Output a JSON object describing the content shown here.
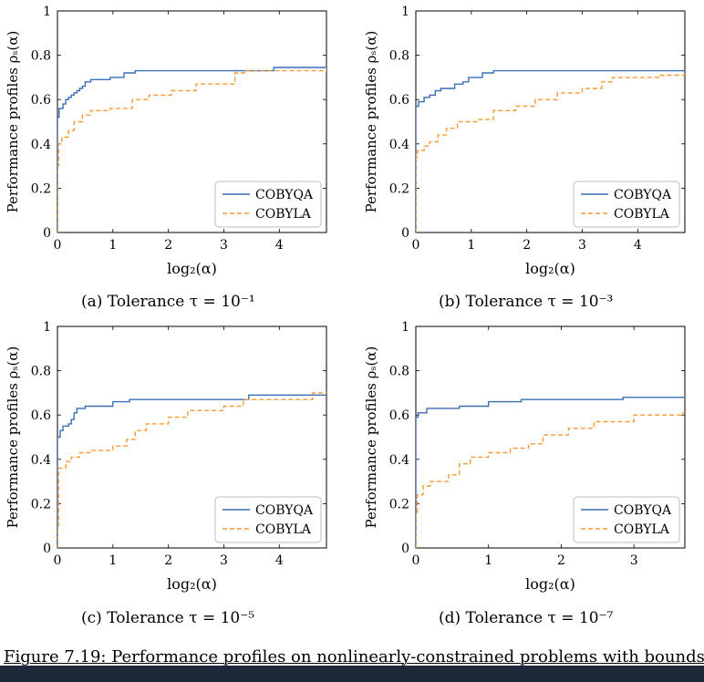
{
  "caption": "Figure 7.19: Performance profiles on nonlinearly-constrained problems with bounds",
  "colors": {
    "cobyqa": "#3a6fb5",
    "cobyla": "#f59a34",
    "bottom_bar": "#1d2838"
  },
  "chart_data": [
    {
      "type": "line",
      "step": true,
      "subcaption": "(a) Tolerance τ = 10⁻¹",
      "xlabel": "log₂(α)",
      "ylabel": "Performance profiles ρₛ(α)",
      "xlim": [
        0,
        4.85
      ],
      "ylim": [
        0,
        1
      ],
      "xticks": [
        "0",
        "1",
        "2",
        "3",
        "4"
      ],
      "yticks": [
        "0",
        "0.2",
        "0.4",
        "0.6",
        "0.8",
        "1"
      ],
      "legend_position": "lower-right",
      "series": [
        {
          "name": "COBYQA",
          "style": "solid",
          "x": [
            0,
            0.03,
            0.1,
            0.15,
            0.2,
            0.25,
            0.3,
            0.35,
            0.4,
            0.45,
            0.5,
            0.6,
            0.95,
            1.2,
            1.4,
            3.9,
            4.85
          ],
          "y": [
            0.52,
            0.56,
            0.58,
            0.6,
            0.61,
            0.62,
            0.63,
            0.64,
            0.65,
            0.66,
            0.68,
            0.69,
            0.7,
            0.72,
            0.73,
            0.745,
            0.745
          ]
        },
        {
          "name": "COBYLA",
          "style": "dashed",
          "x": [
            0,
            0.02,
            0.08,
            0.2,
            0.3,
            0.45,
            0.6,
            0.95,
            1.35,
            1.65,
            2.05,
            2.5,
            3.2,
            3.4,
            4.85
          ],
          "y": [
            0.3,
            0.4,
            0.43,
            0.46,
            0.5,
            0.53,
            0.55,
            0.56,
            0.6,
            0.62,
            0.64,
            0.67,
            0.72,
            0.73,
            0.745
          ]
        }
      ]
    },
    {
      "type": "line",
      "step": true,
      "subcaption": "(b) Tolerance τ = 10⁻³",
      "xlabel": "log₂(α)",
      "ylabel": "Performance profiles ρₛ(α)",
      "xlim": [
        0,
        4.85
      ],
      "ylim": [
        0,
        1
      ],
      "xticks": [
        "0",
        "1",
        "2",
        "3",
        "4"
      ],
      "yticks": [
        "0",
        "0.2",
        "0.4",
        "0.6",
        "0.8",
        "1"
      ],
      "legend_position": "lower-right",
      "series": [
        {
          "name": "COBYQA",
          "style": "solid",
          "x": [
            0,
            0.05,
            0.15,
            0.25,
            0.35,
            0.45,
            0.7,
            0.85,
            0.95,
            1.2,
            1.4,
            4.85
          ],
          "y": [
            0.57,
            0.59,
            0.61,
            0.62,
            0.64,
            0.65,
            0.67,
            0.68,
            0.7,
            0.72,
            0.73,
            0.73
          ]
        },
        {
          "name": "COBYLA",
          "style": "dashed",
          "x": [
            0,
            0.03,
            0.15,
            0.25,
            0.4,
            0.55,
            0.75,
            1.1,
            1.4,
            1.8,
            2.15,
            2.55,
            3.0,
            3.35,
            3.55,
            4.4,
            4.85
          ],
          "y": [
            0.34,
            0.37,
            0.39,
            0.41,
            0.44,
            0.47,
            0.5,
            0.51,
            0.55,
            0.57,
            0.6,
            0.63,
            0.65,
            0.68,
            0.7,
            0.71,
            0.72
          ]
        }
      ]
    },
    {
      "type": "line",
      "step": true,
      "subcaption": "(c) Tolerance τ = 10⁻⁵",
      "xlabel": "log₂(α)",
      "ylabel": "Performance profiles ρₛ(α)",
      "xlim": [
        0,
        4.85
      ],
      "ylim": [
        0,
        1
      ],
      "xticks": [
        "0",
        "1",
        "2",
        "3",
        "4"
      ],
      "yticks": [
        "0",
        "0.2",
        "0.4",
        "0.6",
        "0.8",
        "1"
      ],
      "legend_position": "lower-right",
      "series": [
        {
          "name": "COBYQA",
          "style": "solid",
          "x": [
            0,
            0.05,
            0.1,
            0.2,
            0.25,
            0.3,
            0.35,
            0.5,
            1.0,
            1.3,
            3.45,
            4.85
          ],
          "y": [
            0.5,
            0.53,
            0.55,
            0.56,
            0.58,
            0.61,
            0.63,
            0.64,
            0.66,
            0.67,
            0.69,
            0.69
          ]
        },
        {
          "name": "COBYLA",
          "style": "dashed",
          "x": [
            0,
            0.02,
            0.15,
            0.25,
            0.4,
            0.6,
            1.0,
            1.25,
            1.4,
            1.6,
            2.0,
            2.35,
            3.0,
            3.35,
            4.6,
            4.85
          ],
          "y": [
            0.1,
            0.36,
            0.39,
            0.41,
            0.43,
            0.44,
            0.46,
            0.49,
            0.53,
            0.56,
            0.59,
            0.62,
            0.64,
            0.67,
            0.7,
            0.7
          ]
        }
      ]
    },
    {
      "type": "line",
      "step": true,
      "subcaption": "(d) Tolerance τ = 10⁻⁷",
      "xlabel": "log₂(α)",
      "ylabel": "Performance profiles ρₛ(α)",
      "xlim": [
        0,
        3.7
      ],
      "ylim": [
        0,
        1
      ],
      "xticks": [
        "0",
        "1",
        "2",
        "3"
      ],
      "yticks": [
        "0",
        "0.2",
        "0.4",
        "0.6",
        "0.8",
        "1"
      ],
      "legend_position": "lower-right",
      "series": [
        {
          "name": "COBYQA",
          "style": "solid",
          "x": [
            0,
            0.03,
            0.15,
            0.6,
            1.0,
            1.45,
            2.85,
            3.7
          ],
          "y": [
            0.59,
            0.61,
            0.63,
            0.64,
            0.66,
            0.67,
            0.68,
            0.68
          ]
        },
        {
          "name": "COBYLA",
          "style": "dashed",
          "x": [
            0,
            0.02,
            0.1,
            0.2,
            0.45,
            0.6,
            0.75,
            1.0,
            1.3,
            1.55,
            1.75,
            2.1,
            2.45,
            3.0,
            3.65,
            3.7
          ],
          "y": [
            0.15,
            0.24,
            0.28,
            0.3,
            0.33,
            0.38,
            0.41,
            0.43,
            0.45,
            0.47,
            0.51,
            0.54,
            0.57,
            0.6,
            0.61,
            0.61
          ]
        }
      ]
    }
  ]
}
